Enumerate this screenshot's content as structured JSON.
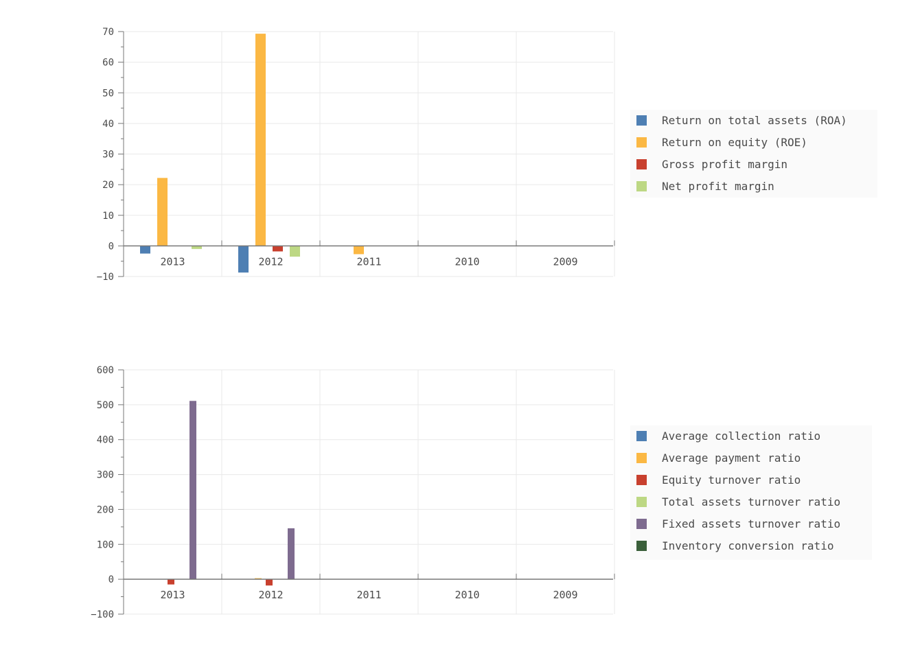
{
  "chart_data": [
    {
      "type": "bar",
      "categories": [
        "2013",
        "2012",
        "2011",
        "2010",
        "2009"
      ],
      "ylim": [
        -10,
        70
      ],
      "yticks": [
        -10,
        0,
        10,
        20,
        30,
        40,
        50,
        60,
        70
      ],
      "grid": true,
      "legend_position": "right",
      "series": [
        {
          "name": "Return on total assets (ROA)",
          "color": "#4e7fb3",
          "values": [
            -2.5,
            -8.7,
            0,
            0,
            0
          ]
        },
        {
          "name": "Return on equity (ROE)",
          "color": "#fbb844",
          "values": [
            22.2,
            69.3,
            -2.7,
            0,
            0
          ]
        },
        {
          "name": "Gross profit margin",
          "color": "#c8402e",
          "values": [
            0,
            -1.8,
            0,
            0,
            0
          ]
        },
        {
          "name": "Net profit margin",
          "color": "#bdd884",
          "values": [
            -1.0,
            -3.5,
            0,
            0,
            0
          ]
        }
      ]
    },
    {
      "type": "bar",
      "categories": [
        "2013",
        "2012",
        "2011",
        "2010",
        "2009"
      ],
      "ylim": [
        -100,
        600
      ],
      "yticks": [
        -100,
        0,
        100,
        200,
        300,
        400,
        500,
        600
      ],
      "grid": true,
      "legend_position": "right",
      "series": [
        {
          "name": "Average collection ratio",
          "color": "#4e7fb3",
          "values": [
            0,
            0,
            0,
            0,
            0
          ]
        },
        {
          "name": "Average payment ratio",
          "color": "#fbb844",
          "values": [
            0,
            3,
            0,
            0,
            0
          ]
        },
        {
          "name": "Equity turnover ratio",
          "color": "#c8402e",
          "values": [
            -15,
            -18,
            0,
            0,
            0
          ]
        },
        {
          "name": "Total assets turnover ratio",
          "color": "#bdd884",
          "values": [
            0,
            0,
            0,
            0,
            0
          ]
        },
        {
          "name": "Fixed assets turnover ratio",
          "color": "#7e6b8f",
          "values": [
            511,
            146,
            0,
            0,
            0
          ]
        },
        {
          "name": "Inventory conversion ratio",
          "color": "#3a5f3a",
          "values": [
            0,
            0,
            0,
            0,
            0
          ]
        }
      ]
    }
  ]
}
